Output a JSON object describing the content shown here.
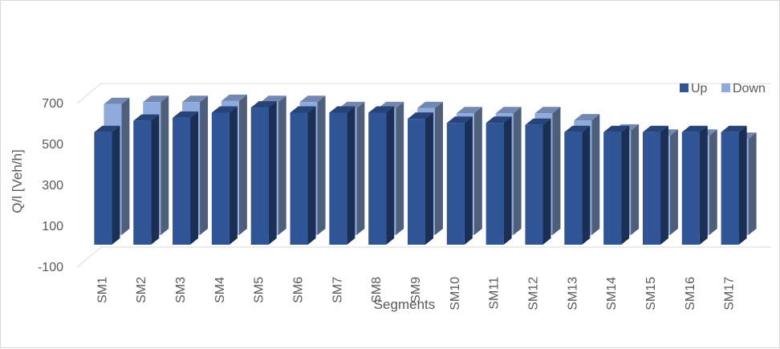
{
  "chart_data": {
    "type": "bar",
    "style": "3d-clustered-column",
    "title": "",
    "xlabel": "Segments",
    "ylabel": "Q/l [Veh/h]",
    "ylim": [
      -100,
      700
    ],
    "yticks": [
      "-100",
      "100",
      "300",
      "500",
      "700"
    ],
    "grid": false,
    "legend_position": "top-right",
    "categories": [
      "SM1",
      "SM2",
      "SM3",
      "SM4",
      "SM5",
      "SM6",
      "SM7",
      "SM8",
      "SM9",
      "SM10",
      "SM11",
      "SM12",
      "SM13",
      "SM14",
      "SM15",
      "SM16",
      "SM17"
    ],
    "series": [
      {
        "name": "Up",
        "color": "#2f5597",
        "values": [
          560,
          615,
          630,
          655,
          680,
          655,
          655,
          655,
          625,
          605,
          605,
          595,
          560,
          560,
          560,
          560,
          560
        ]
      },
      {
        "name": "Down",
        "color": "#8faadc",
        "values": [
          650,
          660,
          660,
          665,
          660,
          660,
          630,
          630,
          630,
          605,
          605,
          605,
          570,
          520,
          495,
          495,
          480
        ]
      }
    ]
  }
}
